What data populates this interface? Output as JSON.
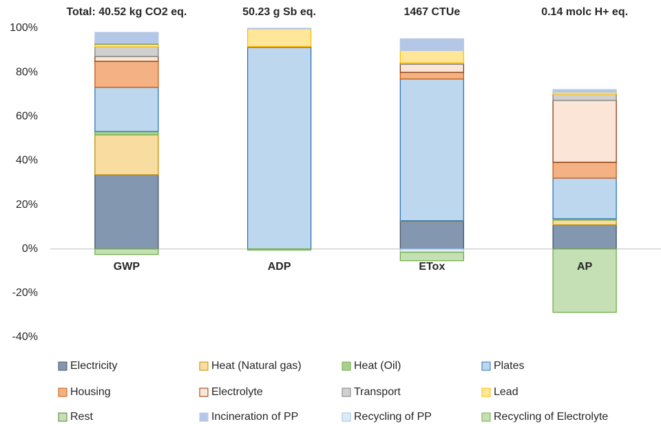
{
  "chart_data": {
    "type": "stacked-bar",
    "annotations": [
      "Total: 40.52 kg CO2 eq.",
      "50.23 g Sb eq.",
      "1467 CTUe",
      "0.14 molc H+ eq."
    ],
    "categories": [
      "GWP",
      "ADP",
      "ETox",
      "AP"
    ],
    "ylim": [
      -40,
      100
    ],
    "yticks": [
      {
        "value": -40,
        "label": "-40%"
      },
      {
        "value": -20,
        "label": "-20%"
      },
      {
        "value": 0,
        "label": "0%"
      },
      {
        "value": 20,
        "label": "20%"
      },
      {
        "value": 40,
        "label": "40%"
      },
      {
        "value": 60,
        "label": "60%"
      },
      {
        "value": 80,
        "label": "80%"
      },
      {
        "value": 100,
        "label": "100%"
      }
    ],
    "grid": false,
    "legend": "bottom",
    "series": [
      {
        "name": "Electricity",
        "color": "#8497b0",
        "edge": "#44546a",
        "values": [
          33.6,
          0,
          12.5,
          10.9
        ]
      },
      {
        "name": "Heat (Natural gas)",
        "color": "#f8dca0",
        "edge": "#bf8f00",
        "values": [
          18.1,
          0,
          0.3,
          2.2
        ]
      },
      {
        "name": "Heat (Oil)",
        "color": "#a9d18e",
        "edge": "#70ad47",
        "values": [
          1.5,
          0,
          0,
          0.6
        ]
      },
      {
        "name": "Plates",
        "color": "#bdd7ee",
        "edge": "#2e75b6",
        "values": [
          20,
          91.3,
          64.2,
          18.4
        ]
      },
      {
        "name": "Housing",
        "color": "#f4b183",
        "edge": "#c55a11",
        "values": [
          11.8,
          0.4,
          3,
          7.2
        ]
      },
      {
        "name": "Electrolyte",
        "color": "#fbe5d6",
        "edge": "#843c0c",
        "values": [
          2.2,
          0,
          3.7,
          28
        ]
      },
      {
        "name": "Transport",
        "color": "#d0d0d0",
        "edge": "#7f7f7f",
        "values": [
          4.4,
          0,
          0.6,
          2.8
        ]
      },
      {
        "name": "Lead",
        "color": "#ffe699",
        "edge": "#ffc000",
        "values": [
          1.2,
          8,
          5.6,
          0.9
        ]
      },
      {
        "name": "Rest",
        "color": "#c5e0b4",
        "edge": "#548235",
        "values": [
          0.3,
          0,
          0,
          0
        ]
      },
      {
        "name": "Incineration of PP",
        "color": "#b4c7e7",
        "edge": "#b4c7e7",
        "values": [
          5,
          0.3,
          5.3,
          1.2
        ]
      },
      {
        "name": "Recycling of PP",
        "color": "#deebf7",
        "edge": "#9dc3e6",
        "values": [
          0,
          0,
          -1.5,
          0
        ]
      },
      {
        "name": "Recycling of Electrolyte",
        "color": "#c5e0b4",
        "edge": "#70ad47",
        "values": [
          -2.5,
          -0.5,
          -3.8,
          -28.7
        ]
      }
    ]
  }
}
